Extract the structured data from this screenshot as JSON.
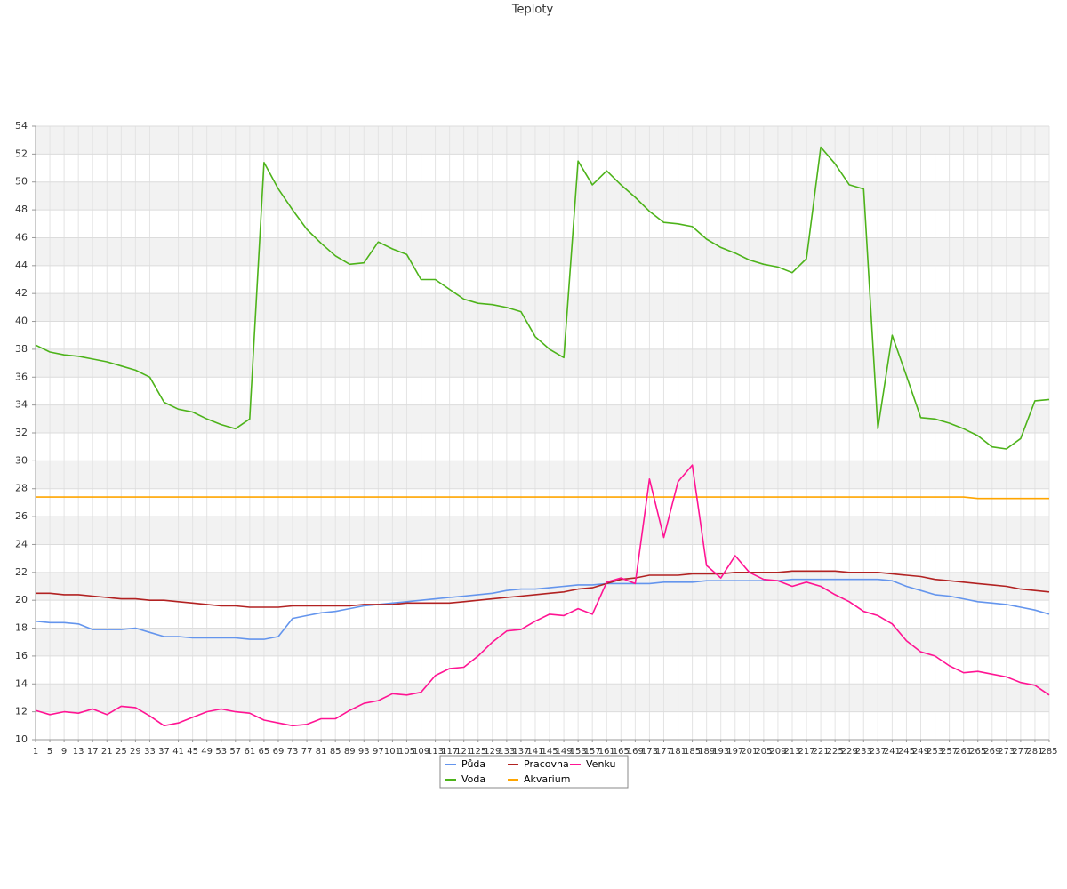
{
  "chart_data": {
    "type": "line",
    "title": "Teploty",
    "categories": [
      "1",
      "5",
      "9",
      "13",
      "17",
      "21",
      "25",
      "29",
      "33",
      "37",
      "41",
      "45",
      "49",
      "53",
      "57",
      "61",
      "65",
      "69",
      "73",
      "77",
      "81",
      "85",
      "89",
      "93",
      "97",
      "101",
      "105",
      "109",
      "113",
      "117",
      "121",
      "125",
      "129",
      "133",
      "137",
      "141",
      "145",
      "149",
      "153",
      "157",
      "161",
      "165",
      "169",
      "173",
      "177",
      "181",
      "185",
      "189",
      "193",
      "197",
      "201",
      "205",
      "209",
      "213",
      "217",
      "221",
      "225",
      "229",
      "233",
      "237",
      "241",
      "245",
      "249",
      "253",
      "257",
      "261",
      "265",
      "269",
      "273",
      "277",
      "281",
      "285"
    ],
    "ylim": [
      10,
      54
    ],
    "yticks": [
      10,
      12,
      14,
      16,
      18,
      20,
      22,
      24,
      26,
      28,
      30,
      32,
      34,
      36,
      38,
      40,
      42,
      44,
      46,
      48,
      50,
      52,
      54
    ],
    "grid": true,
    "series": [
      {
        "name": "Půda",
        "color": "#6495ed",
        "values": [
          18.5,
          18.4,
          18.4,
          18.3,
          17.9,
          17.9,
          17.9,
          18.0,
          17.7,
          17.4,
          17.4,
          17.3,
          17.3,
          17.3,
          17.3,
          17.2,
          17.2,
          17.4,
          18.7,
          18.9,
          19.1,
          19.2,
          19.4,
          19.6,
          19.7,
          19.8,
          19.9,
          20.0,
          20.1,
          20.2,
          20.3,
          20.4,
          20.5,
          20.7,
          20.8,
          20.8,
          20.9,
          21.0,
          21.1,
          21.1,
          21.2,
          21.2,
          21.2,
          21.2,
          21.3,
          21.3,
          21.3,
          21.4,
          21.4,
          21.4,
          21.4,
          21.4,
          21.4,
          21.5,
          21.5,
          21.5,
          21.5,
          21.5,
          21.5,
          21.5,
          21.4,
          21.0,
          20.7,
          20.4,
          20.3,
          20.1,
          19.9,
          19.8,
          19.7,
          19.5,
          19.3,
          19.0
        ]
      },
      {
        "name": "Voda",
        "color": "#4db31a",
        "values": [
          38.3,
          37.8,
          37.6,
          37.5,
          37.3,
          37.1,
          36.8,
          36.5,
          36.0,
          34.2,
          33.7,
          33.5,
          33.0,
          32.6,
          32.3,
          33.0,
          51.4,
          49.5,
          48.0,
          46.6,
          45.6,
          44.7,
          44.1,
          44.2,
          45.7,
          45.2,
          44.8,
          43.0,
          43.0,
          42.3,
          41.6,
          41.3,
          41.2,
          41.0,
          40.7,
          38.9,
          38.0,
          37.4,
          51.5,
          49.8,
          50.8,
          49.8,
          48.9,
          47.9,
          47.1,
          47.0,
          46.8,
          45.9,
          45.3,
          44.9,
          44.4,
          44.1,
          43.9,
          43.5,
          44.5,
          52.5,
          51.3,
          49.8,
          49.5,
          32.3,
          39.0,
          36.1,
          33.1,
          33.0,
          32.7,
          32.3,
          31.8,
          31.0,
          30.85,
          31.6,
          34.3,
          34.4
        ]
      },
      {
        "name": "Pracovna",
        "color": "#b22222",
        "values": [
          20.5,
          20.5,
          20.4,
          20.4,
          20.3,
          20.2,
          20.1,
          20.1,
          20.0,
          20.0,
          19.9,
          19.8,
          19.7,
          19.6,
          19.6,
          19.5,
          19.5,
          19.5,
          19.6,
          19.6,
          19.6,
          19.6,
          19.6,
          19.7,
          19.7,
          19.7,
          19.8,
          19.8,
          19.8,
          19.8,
          19.9,
          20.0,
          20.1,
          20.2,
          20.3,
          20.4,
          20.5,
          20.6,
          20.8,
          20.9,
          21.2,
          21.5,
          21.6,
          21.8,
          21.8,
          21.8,
          21.9,
          21.9,
          21.9,
          22.0,
          22.0,
          22.0,
          22.0,
          22.1,
          22.1,
          22.1,
          22.1,
          22.0,
          22.0,
          22.0,
          21.9,
          21.8,
          21.7,
          21.5,
          21.4,
          21.3,
          21.2,
          21.1,
          21.0,
          20.8,
          20.7,
          20.6
        ]
      },
      {
        "name": "Akvarium",
        "color": "#ffa500",
        "values": [
          27.4,
          27.4,
          27.4,
          27.4,
          27.4,
          27.4,
          27.4,
          27.4,
          27.4,
          27.4,
          27.4,
          27.4,
          27.4,
          27.4,
          27.4,
          27.4,
          27.4,
          27.4,
          27.4,
          27.4,
          27.4,
          27.4,
          27.4,
          27.4,
          27.4,
          27.4,
          27.4,
          27.4,
          27.4,
          27.4,
          27.4,
          27.4,
          27.4,
          27.4,
          27.4,
          27.4,
          27.4,
          27.4,
          27.4,
          27.4,
          27.4,
          27.4,
          27.4,
          27.4,
          27.4,
          27.4,
          27.4,
          27.4,
          27.4,
          27.4,
          27.4,
          27.4,
          27.4,
          27.4,
          27.4,
          27.4,
          27.4,
          27.4,
          27.4,
          27.4,
          27.4,
          27.4,
          27.4,
          27.4,
          27.4,
          27.4,
          27.3,
          27.3,
          27.3,
          27.3,
          27.3,
          27.3
        ]
      },
      {
        "name": "Venku",
        "color": "#ff1493",
        "values": [
          12.1,
          11.8,
          12.0,
          11.9,
          12.2,
          11.8,
          12.4,
          12.3,
          11.7,
          11.0,
          11.2,
          11.6,
          12.0,
          12.2,
          12.0,
          11.9,
          11.4,
          11.2,
          11.0,
          11.1,
          11.5,
          11.5,
          12.1,
          12.6,
          12.8,
          13.3,
          13.2,
          13.4,
          14.6,
          15.1,
          15.2,
          16.0,
          17.0,
          17.8,
          17.9,
          18.5,
          19.0,
          18.9,
          19.4,
          19.0,
          21.3,
          21.6,
          21.2,
          28.7,
          24.5,
          28.5,
          29.7,
          22.5,
          21.6,
          23.2,
          22.0,
          21.5,
          21.4,
          21.0,
          21.3,
          21.0,
          20.4,
          19.9,
          19.2,
          18.9,
          18.3,
          17.1,
          16.3,
          16.0,
          15.3,
          14.8,
          14.9,
          14.7,
          14.5,
          14.1,
          13.9,
          13.2
        ]
      }
    ]
  }
}
